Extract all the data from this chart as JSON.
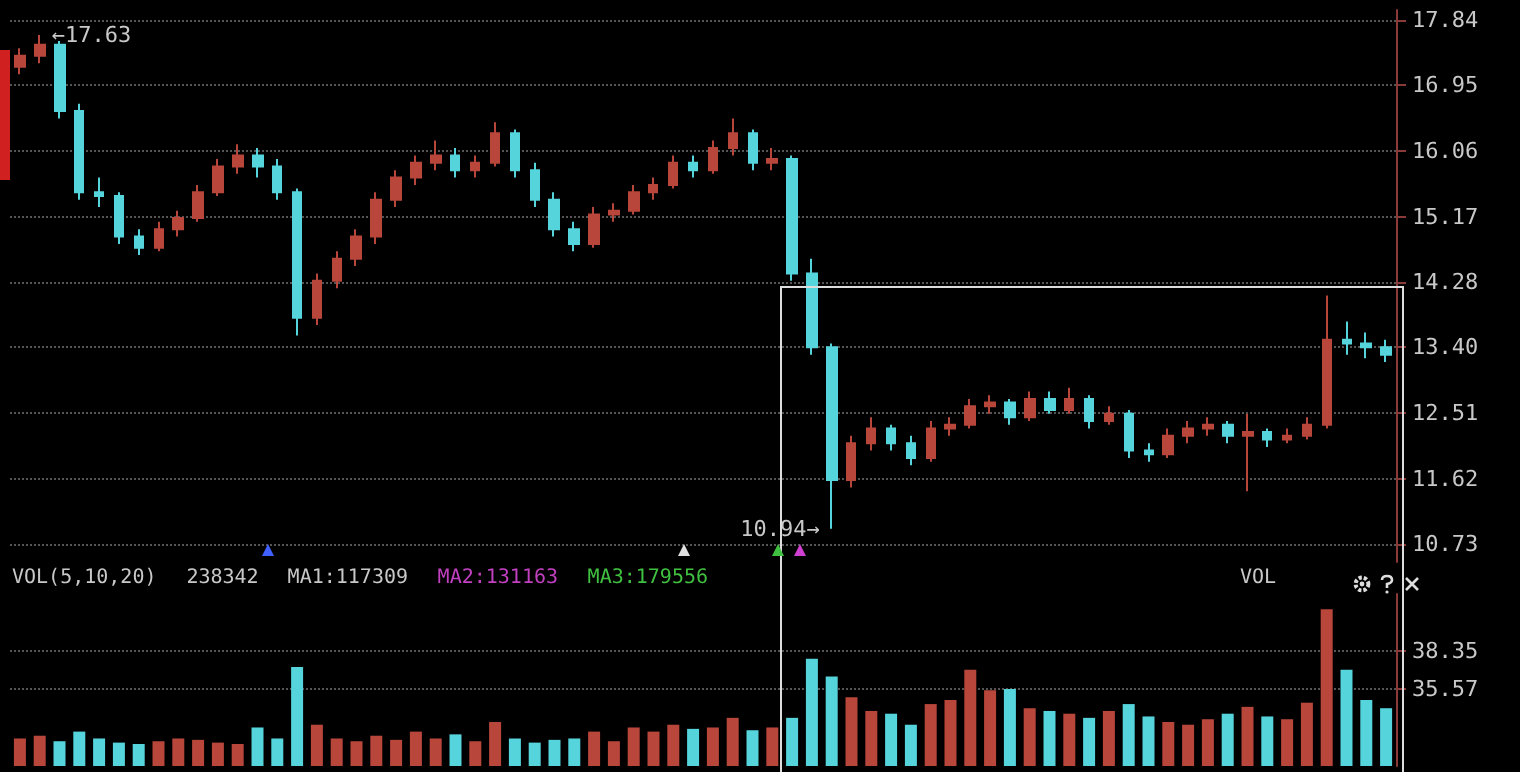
{
  "chart_data": [
    {
      "type": "candlestick",
      "categories": [
        null,
        null,
        null,
        null,
        null,
        null,
        null,
        null,
        null,
        null,
        null,
        null,
        null,
        null,
        null,
        null,
        null,
        null,
        null,
        null,
        null,
        null,
        null,
        null,
        null,
        null,
        null,
        null,
        null,
        null,
        null,
        null,
        null,
        null,
        null,
        null,
        null,
        null,
        null,
        null,
        null,
        null,
        null,
        null,
        null,
        null,
        null,
        null,
        null,
        null,
        null,
        null,
        null,
        null,
        null,
        null,
        null,
        null,
        null,
        null,
        null,
        null,
        null,
        null,
        null,
        null,
        null,
        null,
        null,
        null
      ],
      "ohlc": [
        [
          17.2,
          17.45,
          17.1,
          17.35
        ],
        [
          17.35,
          17.63,
          17.25,
          17.5
        ],
        [
          17.5,
          17.55,
          16.5,
          16.6
        ],
        [
          16.6,
          16.7,
          15.4,
          15.5
        ],
        [
          15.5,
          15.7,
          15.3,
          15.45
        ],
        [
          15.45,
          15.5,
          14.8,
          14.9
        ],
        [
          14.9,
          15.0,
          14.65,
          14.75
        ],
        [
          14.75,
          15.1,
          14.7,
          15.0
        ],
        [
          15.0,
          15.25,
          14.9,
          15.15
        ],
        [
          15.15,
          15.6,
          15.1,
          15.5
        ],
        [
          15.5,
          15.95,
          15.45,
          15.85
        ],
        [
          15.85,
          16.15,
          15.75,
          16.0
        ],
        [
          16.0,
          16.1,
          15.7,
          15.85
        ],
        [
          15.85,
          15.95,
          15.4,
          15.5
        ],
        [
          15.5,
          15.55,
          13.56,
          13.8
        ],
        [
          13.8,
          14.4,
          13.7,
          14.3
        ],
        [
          14.3,
          14.7,
          14.2,
          14.6
        ],
        [
          14.6,
          15.0,
          14.5,
          14.9
        ],
        [
          14.9,
          15.5,
          14.8,
          15.4
        ],
        [
          15.4,
          15.8,
          15.3,
          15.7
        ],
        [
          15.7,
          16.0,
          15.6,
          15.9
        ],
        [
          15.9,
          16.2,
          15.8,
          16.0
        ],
        [
          16.0,
          16.1,
          15.7,
          15.8
        ],
        [
          15.8,
          16.0,
          15.7,
          15.9
        ],
        [
          15.9,
          16.45,
          15.85,
          16.3
        ],
        [
          16.3,
          16.35,
          15.7,
          15.8
        ],
        [
          15.8,
          15.9,
          15.3,
          15.4
        ],
        [
          15.4,
          15.5,
          14.9,
          15.0
        ],
        [
          15.0,
          15.1,
          14.7,
          14.8
        ],
        [
          14.8,
          15.3,
          14.75,
          15.2
        ],
        [
          15.2,
          15.35,
          15.1,
          15.25
        ],
        [
          15.25,
          15.6,
          15.2,
          15.5
        ],
        [
          15.5,
          15.7,
          15.4,
          15.6
        ],
        [
          15.6,
          16.0,
          15.55,
          15.9
        ],
        [
          15.9,
          16.0,
          15.7,
          15.8
        ],
        [
          15.8,
          16.2,
          15.75,
          16.1
        ],
        [
          16.1,
          16.5,
          16.0,
          16.3
        ],
        [
          16.3,
          16.35,
          15.8,
          15.9
        ],
        [
          15.9,
          16.1,
          15.8,
          15.95
        ],
        [
          15.95,
          16.0,
          14.3,
          14.4
        ],
        [
          14.4,
          14.6,
          13.3,
          13.4
        ],
        [
          13.4,
          13.45,
          10.94,
          11.6
        ],
        [
          11.6,
          12.2,
          11.5,
          12.1
        ],
        [
          12.1,
          12.45,
          12.0,
          12.3
        ],
        [
          12.3,
          12.35,
          12.0,
          12.1
        ],
        [
          12.1,
          12.2,
          11.8,
          11.9
        ],
        [
          11.9,
          12.4,
          11.85,
          12.3
        ],
        [
          12.3,
          12.45,
          12.2,
          12.35
        ],
        [
          12.35,
          12.7,
          12.3,
          12.6
        ],
        [
          12.6,
          12.75,
          12.5,
          12.65
        ],
        [
          12.65,
          12.7,
          12.35,
          12.45
        ],
        [
          12.45,
          12.8,
          12.4,
          12.7
        ],
        [
          12.7,
          12.8,
          12.5,
          12.55
        ],
        [
          12.55,
          12.85,
          12.5,
          12.7
        ],
        [
          12.7,
          12.75,
          12.3,
          12.4
        ],
        [
          12.4,
          12.6,
          12.35,
          12.5
        ],
        [
          12.5,
          12.55,
          11.9,
          12.0
        ],
        [
          12.0,
          12.1,
          11.85,
          11.95
        ],
        [
          11.95,
          12.3,
          11.9,
          12.2
        ],
        [
          12.2,
          12.4,
          12.1,
          12.3
        ],
        [
          12.3,
          12.45,
          12.2,
          12.35
        ],
        [
          12.35,
          12.4,
          12.1,
          12.2
        ],
        [
          12.2,
          12.5,
          11.45,
          12.25
        ],
        [
          12.25,
          12.3,
          12.05,
          12.15
        ],
        [
          12.15,
          12.3,
          12.1,
          12.2
        ],
        [
          12.2,
          12.45,
          12.15,
          12.35
        ],
        [
          12.35,
          14.1,
          12.3,
          13.5
        ],
        [
          13.5,
          13.75,
          13.3,
          13.45
        ],
        [
          13.45,
          13.6,
          13.25,
          13.4
        ],
        [
          13.4,
          13.5,
          13.2,
          13.3
        ]
      ],
      "colors": [
        "#b8463a",
        "#b8463a",
        "#55d4dc",
        "#55d4dc",
        "#55d4dc",
        "#55d4dc",
        "#55d4dc",
        "#b8463a",
        "#b8463a",
        "#b8463a",
        "#b8463a",
        "#b8463a",
        "#55d4dc",
        "#55d4dc",
        "#55d4dc",
        "#b8463a",
        "#b8463a",
        "#b8463a",
        "#b8463a",
        "#b8463a",
        "#b8463a",
        "#b8463a",
        "#55d4dc",
        "#b8463a",
        "#b8463a",
        "#55d4dc",
        "#55d4dc",
        "#55d4dc",
        "#55d4dc",
        "#b8463a",
        "#b8463a",
        "#b8463a",
        "#b8463a",
        "#b8463a",
        "#55d4dc",
        "#b8463a",
        "#b8463a",
        "#55d4dc",
        "#b8463a",
        "#55d4dc",
        "#55d4dc",
        "#55d4dc",
        "#b8463a",
        "#b8463a",
        "#55d4dc",
        "#55d4dc",
        "#b8463a",
        "#b8463a",
        "#b8463a",
        "#b8463a",
        "#55d4dc",
        "#b8463a",
        "#55d4dc",
        "#b8463a",
        "#55d4dc",
        "#b8463a",
        "#55d4dc",
        "#55d4dc",
        "#b8463a",
        "#b8463a",
        "#b8463a",
        "#55d4dc",
        "#b8463a",
        "#55d4dc",
        "#b8463a",
        "#b8463a",
        "#b8463a",
        "#55d4dc",
        "#55d4dc",
        "#55d4dc"
      ],
      "ylim": [
        10.49,
        17.97
      ],
      "yticks": [
        10.73,
        11.62,
        12.51,
        {
          "value": 13.4,
          "label": "13.40"
        },
        14.28,
        15.17,
        16.06,
        16.95,
        17.84
      ],
      "grid": "y",
      "tick_labels": "y",
      "annotations": [
        "←17.63",
        "10.94→"
      ]
    },
    {
      "type": "bar",
      "categories": [
        null,
        null,
        null,
        null,
        null,
        null,
        null,
        null,
        null,
        null,
        null,
        null,
        null,
        null,
        null,
        null,
        null,
        null,
        null,
        null,
        null,
        null,
        null,
        null,
        null,
        null,
        null,
        null,
        null,
        null,
        null,
        null,
        null,
        null,
        null,
        null,
        null,
        null,
        null,
        null,
        null,
        null,
        null,
        null,
        null,
        null,
        null,
        null,
        null,
        null,
        null,
        null,
        null,
        null,
        null,
        null,
        null,
        null,
        null,
        null,
        null,
        null,
        null,
        null,
        null,
        null,
        null,
        null,
        null,
        null
      ],
      "values": [
        32.0,
        32.2,
        31.8,
        32.5,
        32.0,
        31.7,
        31.6,
        31.8,
        32.0,
        31.9,
        31.7,
        31.6,
        32.8,
        32.0,
        37.2,
        33.0,
        32.0,
        31.8,
        32.2,
        31.9,
        32.5,
        32.0,
        32.3,
        31.8,
        33.2,
        32.0,
        31.7,
        31.9,
        32.0,
        32.5,
        31.8,
        32.8,
        32.5,
        33.0,
        32.7,
        32.8,
        33.5,
        32.6,
        32.8,
        33.5,
        37.8,
        36.5,
        35.0,
        34.0,
        33.8,
        33.0,
        34.5,
        34.8,
        37.0,
        35.5,
        35.6,
        34.2,
        34.0,
        33.8,
        33.5,
        34.0,
        34.5,
        33.6,
        33.2,
        33.0,
        33.4,
        33.8,
        34.3,
        33.6,
        33.4,
        34.6,
        41.4,
        37.0,
        34.8,
        34.2
      ],
      "colors": [
        "#b8463a",
        "#b8463a",
        "#55d4dc",
        "#55d4dc",
        "#55d4dc",
        "#55d4dc",
        "#55d4dc",
        "#b8463a",
        "#b8463a",
        "#b8463a",
        "#b8463a",
        "#b8463a",
        "#55d4dc",
        "#55d4dc",
        "#55d4dc",
        "#b8463a",
        "#b8463a",
        "#b8463a",
        "#b8463a",
        "#b8463a",
        "#b8463a",
        "#b8463a",
        "#55d4dc",
        "#b8463a",
        "#b8463a",
        "#55d4dc",
        "#55d4dc",
        "#55d4dc",
        "#55d4dc",
        "#b8463a",
        "#b8463a",
        "#b8463a",
        "#b8463a",
        "#b8463a",
        "#55d4dc",
        "#b8463a",
        "#b8463a",
        "#55d4dc",
        "#b8463a",
        "#55d4dc",
        "#55d4dc",
        "#55d4dc",
        "#b8463a",
        "#b8463a",
        "#55d4dc",
        "#55d4dc",
        "#b8463a",
        "#b8463a",
        "#b8463a",
        "#b8463a",
        "#55d4dc",
        "#b8463a",
        "#55d4dc",
        "#b8463a",
        "#55d4dc",
        "#b8463a",
        "#55d4dc",
        "#55d4dc",
        "#b8463a",
        "#b8463a",
        "#b8463a",
        "#55d4dc",
        "#b8463a",
        "#55d4dc",
        "#b8463a",
        "#b8463a",
        "#b8463a",
        "#55d4dc",
        "#55d4dc",
        "#55d4dc"
      ],
      "ylim": [
        30.0,
        42.5
      ],
      "yticks": [
        35.57,
        38.35
      ],
      "grid": "y",
      "tick_labels": "y",
      "annotations": [
        "VOL(5,10,20)",
        "238342",
        "MA1:117309",
        "MA2:131163",
        "MA3:179556",
        "VOL"
      ]
    }
  ]
}
